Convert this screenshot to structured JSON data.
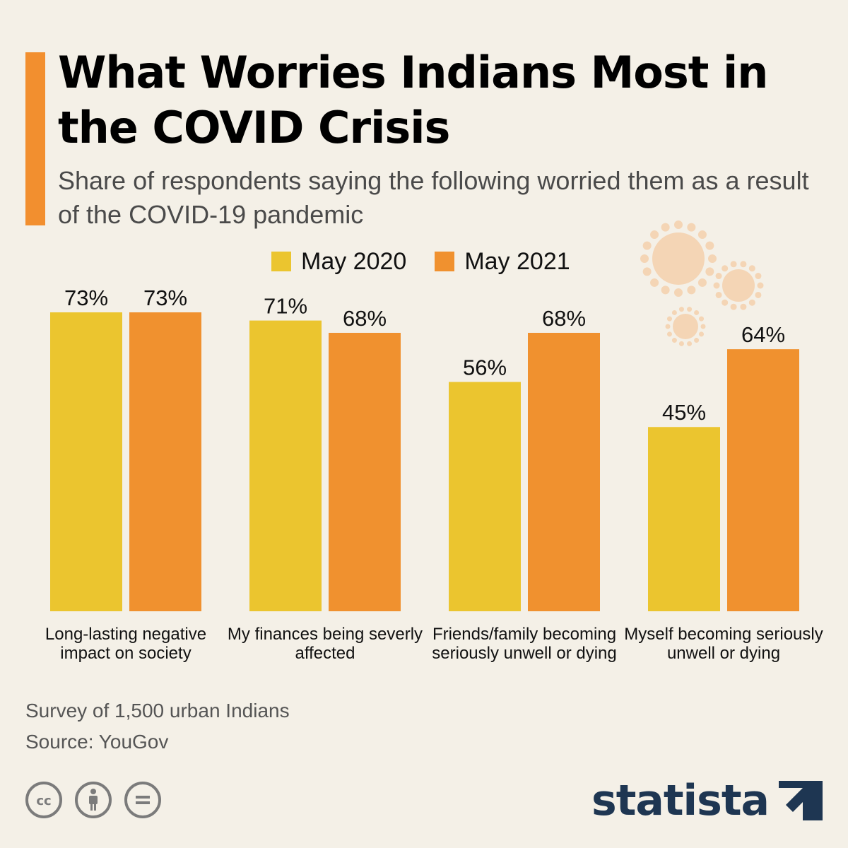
{
  "colors": {
    "accent": "#f28f2f",
    "may2020": "#ebc52f",
    "may2021": "#f0912f",
    "virus": "#f4d5b5",
    "brand": "#1e3652"
  },
  "header": {
    "title": "What Worries Indians Most in the COVID Crisis",
    "subtitle": "Share of respondents saying the following worried them as a result of the COVID-19 pandemic"
  },
  "legend": {
    "items": [
      {
        "label": "May 2020"
      },
      {
        "label": "May 2021"
      }
    ]
  },
  "chart_data": {
    "type": "bar",
    "title": "What Worries Indians Most in the COVID Crisis",
    "subtitle": "Share of respondents saying the following worried them as a result of the COVID-19 pandemic",
    "categories": [
      "Long-lasting negative impact on society",
      "My finances being severly affected",
      "Friends/family becoming seriously unwell or dying",
      "Myself becoming seriously unwell or dying"
    ],
    "series": [
      {
        "name": "May 2020",
        "values": [
          73,
          71,
          56,
          45
        ]
      },
      {
        "name": "May 2021",
        "values": [
          73,
          68,
          68,
          64
        ]
      }
    ],
    "value_suffix": "%",
    "ylim": [
      0,
      73
    ],
    "grid": false,
    "legend_position": "top-center"
  },
  "footer": {
    "note": "Survey of 1,500 urban Indians",
    "source": "Source: YouGov",
    "brand": "statista",
    "license_icons": [
      "cc-icon",
      "by-attribution-icon",
      "no-derivatives-icon"
    ]
  }
}
